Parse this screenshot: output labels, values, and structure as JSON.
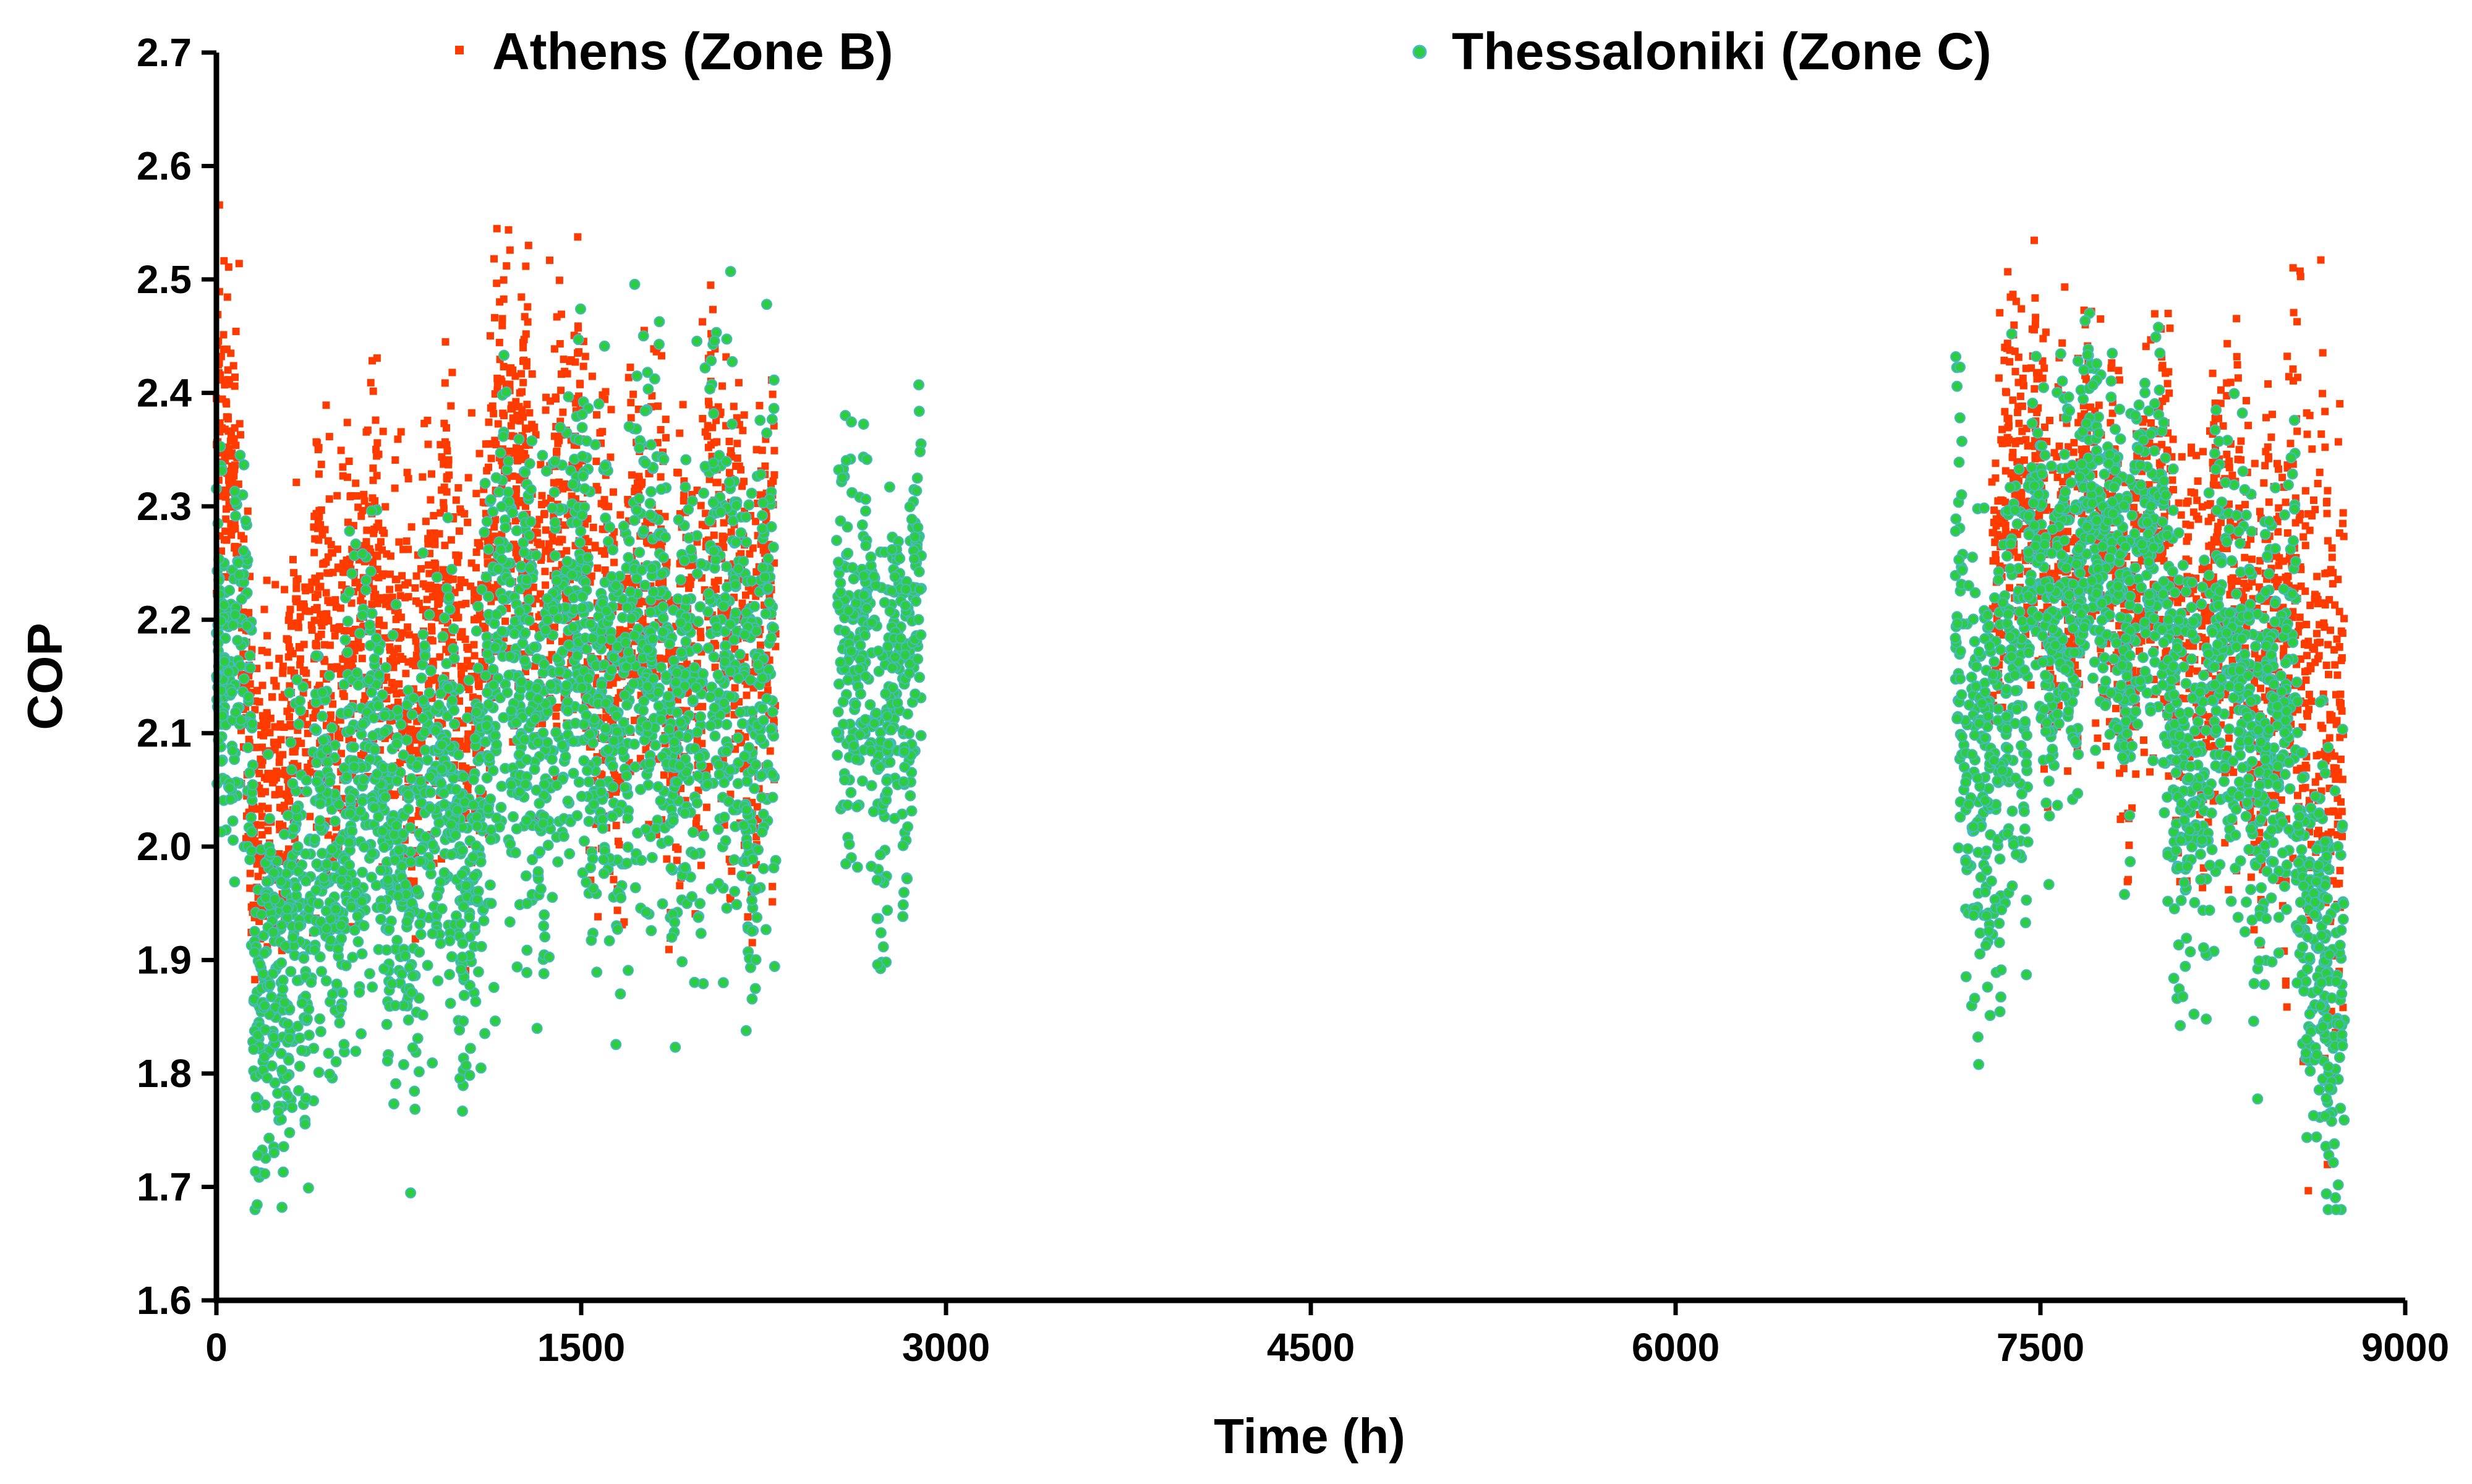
{
  "chart_data": {
    "type": "scatter",
    "title": "",
    "xlabel": "Time (h)",
    "ylabel": "COP",
    "xlim": [
      0,
      9000
    ],
    "ylim": [
      1.6,
      2.7
    ],
    "x_ticks": [
      0,
      1500,
      3000,
      4500,
      6000,
      7500,
      9000
    ],
    "y_ticks": [
      1.6,
      1.7,
      1.8,
      1.9,
      2.0,
      2.1,
      2.2,
      2.3,
      2.4,
      2.5,
      2.6,
      2.7
    ],
    "x_tick_labels": [
      "0",
      "1500",
      "3000",
      "4500",
      "6000",
      "7500",
      "9000"
    ],
    "y_tick_labels": [
      "1.6",
      "1.7",
      "1.8",
      "1.9",
      "2.0",
      "2.1",
      "2.2",
      "2.3",
      "2.4",
      "2.5",
      "2.6",
      "2.7"
    ],
    "grid": false,
    "legend_position": "top",
    "series": [
      {
        "name": "Athens (Zone B)",
        "marker": "square",
        "color": "#ff3b00",
        "outline": "#ff3b00",
        "segments": [
          {
            "x_range": [
              0,
              100
            ],
            "y_center": 2.32,
            "y_spread": 0.12
          },
          {
            "x_range": [
              100,
              400
            ],
            "y_center": 2.08,
            "y_spread": 0.14
          },
          {
            "x_range": [
              400,
              1100
            ],
            "y_center": 2.18,
            "y_spread": 0.16
          },
          {
            "x_range": [
              1100,
              1500
            ],
            "y_center": 2.28,
            "y_spread": 0.17
          },
          {
            "x_range": [
              1500,
              2300
            ],
            "y_center": 2.2,
            "y_spread": 0.18
          },
          {
            "x_range": [
              7300,
              7600
            ],
            "y_center": 2.3,
            "y_spread": 0.15
          },
          {
            "x_range": [
              7600,
              8000
            ],
            "y_center": 2.25,
            "y_spread": 0.15
          },
          {
            "x_range": [
              8000,
              8500
            ],
            "y_center": 2.2,
            "y_spread": 0.18
          },
          {
            "x_range": [
              8500,
              8750
            ],
            "y_center": 2.15,
            "y_spread": 0.25
          }
        ]
      },
      {
        "name": "Thessaloniki (Zone C)",
        "marker": "circle",
        "color": "#2ecc40",
        "outline": "#46b8c8",
        "segments": [
          {
            "x_range": [
              0,
              150
            ],
            "y_center": 2.12,
            "y_spread": 0.14
          },
          {
            "x_range": [
              150,
              400
            ],
            "y_center": 1.9,
            "y_spread": 0.15
          },
          {
            "x_range": [
              400,
              1100
            ],
            "y_center": 2.02,
            "y_spread": 0.16
          },
          {
            "x_range": [
              1100,
              1500
            ],
            "y_center": 2.15,
            "y_spread": 0.18
          },
          {
            "x_range": [
              1500,
              2300
            ],
            "y_center": 2.15,
            "y_spread": 0.2
          },
          {
            "x_range": [
              2550,
              2900
            ],
            "y_center": 2.15,
            "y_spread": 0.15
          },
          {
            "x_range": [
              7150,
              7450
            ],
            "y_center": 2.1,
            "y_spread": 0.18
          },
          {
            "x_range": [
              7450,
              8000
            ],
            "y_center": 2.25,
            "y_spread": 0.15
          },
          {
            "x_range": [
              8000,
              8550
            ],
            "y_center": 2.12,
            "y_spread": 0.18
          },
          {
            "x_range": [
              8550,
              8750
            ],
            "y_center": 1.92,
            "y_spread": 0.15
          }
        ]
      }
    ]
  }
}
